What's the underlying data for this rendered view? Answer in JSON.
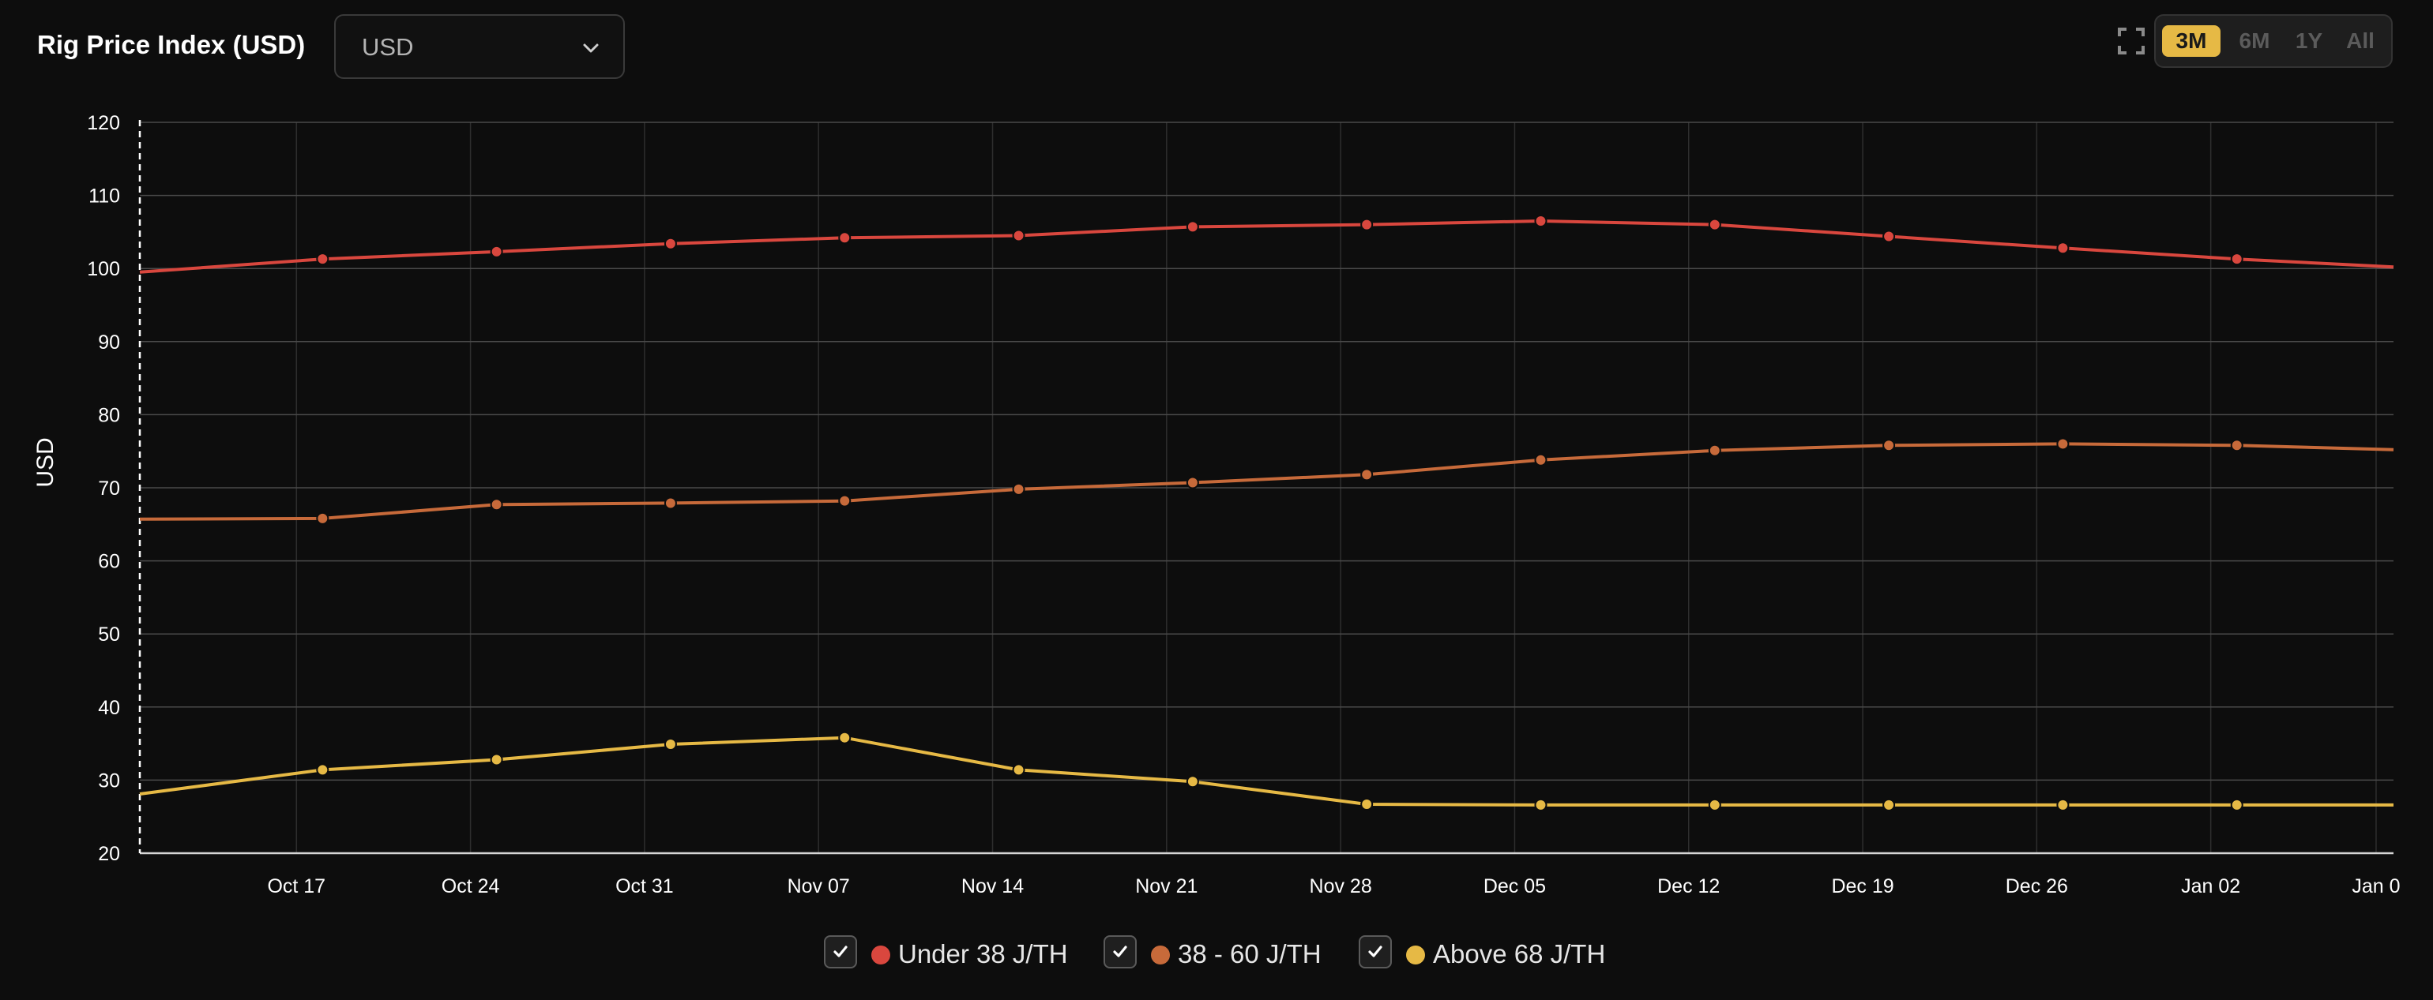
{
  "header": {
    "title": "Rig Price Index (USD)",
    "currency_select": {
      "value": "USD"
    },
    "ranges": [
      {
        "label": "3M",
        "active": true
      },
      {
        "label": "6M",
        "active": false
      },
      {
        "label": "1Y",
        "active": false
      },
      {
        "label": "All",
        "active": false
      }
    ]
  },
  "legend": [
    {
      "label": "Under 38 J/TH",
      "color": "#d9473e",
      "checked": true
    },
    {
      "label": "38 - 60 J/TH",
      "color": "#c76a3a",
      "checked": true
    },
    {
      "label": "Above 68 J/TH",
      "color": "#e6b945",
      "checked": true
    }
  ],
  "chart_data": {
    "type": "line",
    "title": "",
    "xlabel": "",
    "ylabel": "USD",
    "ylim": [
      20,
      120
    ],
    "yticks": [
      20,
      30,
      40,
      50,
      60,
      70,
      80,
      90,
      100,
      110,
      120
    ],
    "xlim": [
      -0.9,
      12.05
    ],
    "xticks": [
      {
        "pos": 0,
        "label": "Oct 17"
      },
      {
        "pos": 1,
        "label": "Oct 24"
      },
      {
        "pos": 2,
        "label": "Oct 31"
      },
      {
        "pos": 3,
        "label": "Nov 07"
      },
      {
        "pos": 4,
        "label": "Nov 14"
      },
      {
        "pos": 5,
        "label": "Nov 21"
      },
      {
        "pos": 6,
        "label": "Nov 28"
      },
      {
        "pos": 7,
        "label": "Dec 05"
      },
      {
        "pos": 8,
        "label": "Dec 12"
      },
      {
        "pos": 9,
        "label": "Dec 19"
      },
      {
        "pos": 10,
        "label": "Dec 26"
      },
      {
        "pos": 11,
        "label": "Jan 02"
      },
      {
        "pos": 11.95,
        "label": "Jan 0"
      }
    ],
    "series": [
      {
        "name": "Under 38 J/TH",
        "color": "#d9473e",
        "x": [
          -0.9,
          0.15,
          1.15,
          2.15,
          3.15,
          4.15,
          5.15,
          6.15,
          7.15,
          8.15,
          9.15,
          10.15,
          11.15,
          12.05
        ],
        "values": [
          99.5,
          101.3,
          102.3,
          103.4,
          104.2,
          104.5,
          105.7,
          106.0,
          106.5,
          106.0,
          104.4,
          102.8,
          101.3,
          100.2
        ],
        "markers": [
          false,
          true,
          true,
          true,
          true,
          true,
          true,
          true,
          true,
          true,
          true,
          true,
          true,
          false
        ]
      },
      {
        "name": "38 - 60 J/TH",
        "color": "#c76a3a",
        "x": [
          -0.9,
          0.15,
          1.15,
          2.15,
          3.15,
          4.15,
          5.15,
          6.15,
          7.15,
          8.15,
          9.15,
          10.15,
          11.15,
          12.05
        ],
        "values": [
          65.7,
          65.8,
          67.7,
          67.9,
          68.2,
          69.8,
          70.7,
          71.8,
          73.8,
          75.1,
          75.8,
          76.0,
          75.8,
          75.2
        ],
        "markers": [
          false,
          true,
          true,
          true,
          true,
          true,
          true,
          true,
          true,
          true,
          true,
          true,
          true,
          false
        ]
      },
      {
        "name": "Above 68 J/TH",
        "color": "#e6b945",
        "x": [
          -0.9,
          0.15,
          1.15,
          2.15,
          3.15,
          4.15,
          5.15,
          6.15,
          7.15,
          8.15,
          9.15,
          10.15,
          11.15,
          12.05
        ],
        "values": [
          28.1,
          31.4,
          32.8,
          34.9,
          35.8,
          31.4,
          29.8,
          26.7,
          26.6,
          26.6,
          26.6,
          26.6,
          26.6,
          26.6
        ],
        "markers": [
          false,
          true,
          true,
          true,
          true,
          true,
          true,
          true,
          true,
          true,
          true,
          true,
          true,
          false
        ]
      }
    ],
    "grid": true,
    "legend_position": "bottom-center"
  }
}
